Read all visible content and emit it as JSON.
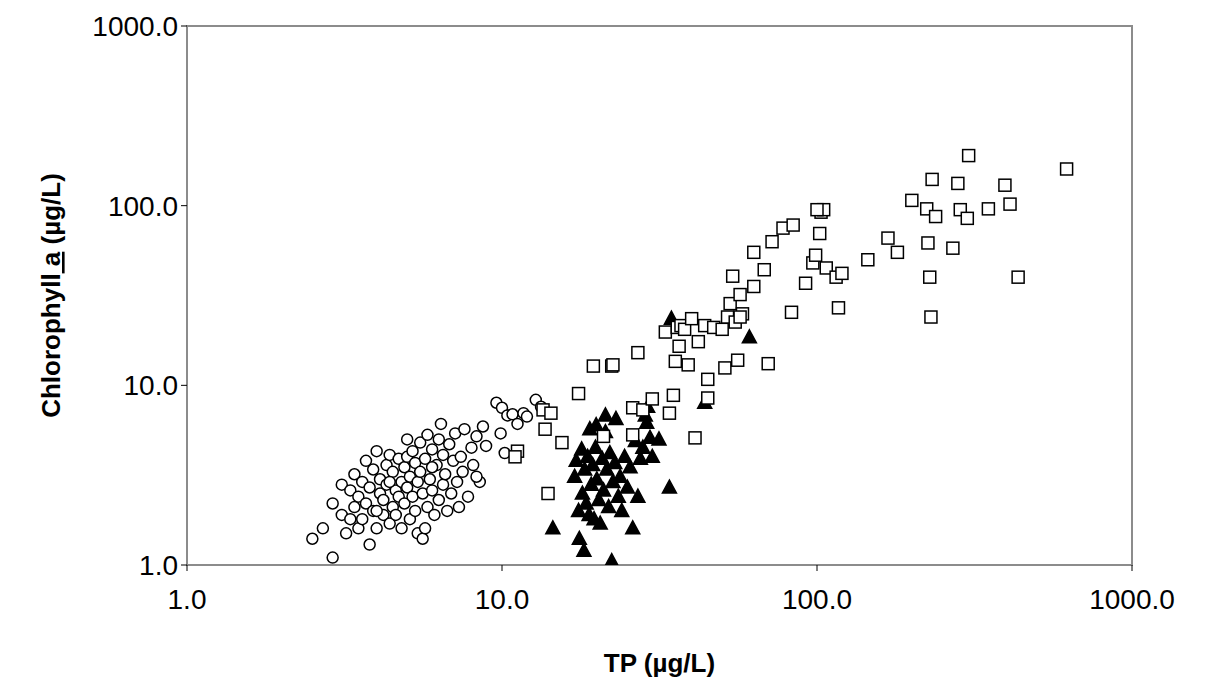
{
  "chart_data": {
    "type": "scatter",
    "x_label": "TP (µg/L)",
    "y_label": "Chlorophyll a (µg/L)",
    "log": true,
    "grid": false,
    "xlim": [
      1,
      1000
    ],
    "ylim": [
      1,
      1000
    ],
    "xticks": [
      {
        "value": 1,
        "label": "1.0"
      },
      {
        "value": 10,
        "label": "10.0"
      },
      {
        "value": 100,
        "label": "100.0"
      },
      {
        "value": 1000,
        "label": "1000.0"
      }
    ],
    "yticks": [
      {
        "value": 1,
        "label": "1.0"
      },
      {
        "value": 10,
        "label": "10.0"
      },
      {
        "value": 100,
        "label": "100.0"
      },
      {
        "value": 1000,
        "label": "1000.0"
      }
    ],
    "series": [
      {
        "marker": "circle",
        "color": "#000000",
        "x": [
          2.5,
          2.7,
          2.9,
          2.9,
          3.1,
          3.1,
          3.2,
          3.3,
          3.3,
          3.4,
          3.4,
          3.5,
          3.5,
          3.6,
          3.6,
          3.7,
          3.7,
          3.8,
          3.8,
          3.9,
          3.9,
          4.0,
          4.0,
          4.1,
          4.1,
          4.2,
          4.2,
          4.3,
          4.3,
          4.4,
          4.4,
          4.5,
          4.5,
          4.6,
          4.6,
          4.7,
          4.7,
          4.8,
          4.8,
          4.9,
          4.9,
          5.0,
          5.0,
          5.1,
          5.1,
          5.2,
          5.2,
          5.3,
          5.3,
          5.4,
          5.4,
          5.5,
          5.5,
          5.6,
          5.6,
          5.7,
          5.8,
          5.8,
          5.9,
          6.0,
          6.0,
          6.1,
          6.2,
          6.3,
          6.3,
          6.4,
          6.5,
          6.5,
          6.6,
          6.8,
          6.9,
          7.0,
          7.1,
          7.2,
          7.4,
          7.5,
          7.6,
          7.8,
          8.0,
          8.1,
          8.3,
          8.5,
          8.7,
          8.9,
          9.6,
          9.9,
          10.0,
          10.2,
          10.4,
          10.8,
          11.2,
          11.7,
          12.0,
          12.8,
          13.3,
          4.0,
          4.4,
          5.7,
          6.7,
          7.3,
          6.0,
          5.0,
          8.3
        ],
        "values": [
          1.4,
          1.6,
          1.1,
          2.2,
          1.9,
          2.8,
          1.5,
          2.6,
          1.8,
          2.1,
          3.2,
          1.6,
          2.4,
          1.8,
          2.9,
          2.2,
          3.8,
          1.3,
          2.7,
          2.0,
          3.4,
          1.6,
          4.3,
          2.5,
          3.0,
          1.9,
          2.3,
          3.6,
          2.8,
          1.7,
          4.1,
          2.1,
          3.3,
          2.6,
          1.9,
          3.9,
          2.4,
          2.9,
          1.6,
          3.5,
          2.2,
          4.0,
          2.7,
          1.8,
          3.1,
          2.4,
          4.3,
          3.7,
          2.0,
          2.9,
          1.5,
          4.8,
          3.3,
          2.5,
          1.4,
          3.9,
          2.1,
          5.3,
          3.0,
          4.4,
          2.6,
          1.9,
          3.6,
          5.0,
          2.3,
          6.1,
          4.1,
          2.8,
          3.2,
          4.7,
          2.5,
          3.8,
          5.4,
          2.9,
          4.0,
          3.3,
          5.7,
          2.4,
          4.5,
          3.6,
          5.2,
          2.9,
          5.9,
          4.6,
          8.0,
          5.4,
          7.5,
          4.2,
          6.8,
          6.9,
          6.1,
          7.0,
          6.7,
          8.3,
          7.6,
          2.0,
          2.9,
          1.6,
          2.0,
          2.1,
          3.5,
          5.0,
          3.1
        ]
      },
      {
        "marker": "triangle",
        "color": "#000000",
        "x": [
          14.5,
          17.0,
          17.2,
          17.5,
          17.6,
          17.9,
          18.0,
          18.2,
          18.3,
          18.5,
          18.7,
          18.9,
          19.0,
          19.2,
          19.4,
          19.6,
          19.8,
          20.0,
          20.3,
          20.5,
          20.8,
          21.0,
          21.3,
          21.5,
          21.8,
          22.0,
          22.3,
          22.5,
          22.8,
          23.0,
          23.4,
          23.7,
          24.0,
          24.5,
          25.0,
          25.5,
          26.0,
          26.5,
          27.0,
          27.5,
          28.0,
          28.5,
          29.0,
          29.5,
          30.0,
          31.5,
          34.0,
          34.5,
          44.0,
          61.0,
          21.3,
          19.9,
          28.8
        ],
        "values": [
          1.6,
          3.1,
          3.8,
          2.0,
          1.4,
          4.4,
          2.5,
          1.2,
          3.4,
          2.2,
          4.0,
          1.9,
          5.7,
          2.8,
          3.6,
          1.8,
          4.5,
          3.0,
          2.3,
          1.7,
          3.9,
          2.6,
          6.8,
          3.4,
          2.1,
          4.2,
          1.05,
          2.9,
          3.7,
          6.5,
          2.4,
          3.1,
          2.0,
          4.0,
          2.7,
          3.5,
          1.6,
          4.9,
          2.4,
          3.9,
          4.5,
          6.8,
          7.6,
          5.1,
          4.0,
          5.0,
          2.7,
          23.5,
          8.0,
          18.5,
          5.5,
          6.0,
          6.2
        ]
      },
      {
        "marker": "square",
        "color": "#000000",
        "x": [
          13.5,
          13.7,
          14.0,
          14.3,
          15.5,
          11.2,
          11.0,
          17.5,
          19.5,
          21.0,
          22.3,
          22.5,
          26.0,
          26.0,
          27.0,
          28.0,
          30.0,
          33.0,
          34.0,
          35.0,
          35.5,
          36.0,
          36.5,
          37.0,
          38.0,
          39.0,
          40.0,
          41.0,
          42.0,
          44.0,
          45.0,
          45.0,
          47.0,
          50.0,
          51.0,
          52.0,
          53.0,
          54.0,
          55.0,
          56.0,
          57.0,
          58.0,
          63.0,
          63.0,
          68.0,
          70.0,
          72.0,
          78.0,
          83.0,
          84.0,
          92.0,
          97.0,
          99.0,
          102.0,
          103.0,
          105.0,
          107.0,
          115.0,
          117.0,
          120.0,
          145.0,
          168.0,
          180.0,
          200.0,
          223.0,
          225.0,
          228.0,
          230.0,
          232.0,
          238.0,
          270.0,
          280.0,
          285.0,
          300.0,
          303.0,
          350.0,
          395.0,
          410.0,
          435.0,
          620.0,
          100.0,
          57.0
        ],
        "values": [
          7.3,
          5.7,
          2.5,
          7.0,
          4.8,
          4.3,
          4.0,
          9.0,
          12.8,
          5.2,
          12.8,
          13.0,
          5.3,
          7.5,
          15.2,
          7.3,
          8.4,
          19.8,
          7.0,
          8.8,
          13.6,
          21.0,
          16.5,
          21.5,
          20.5,
          13.0,
          23.5,
          5.1,
          17.5,
          21.5,
          10.8,
          8.5,
          21.0,
          20.5,
          12.5,
          24.0,
          28.5,
          40.5,
          22.5,
          13.8,
          32.0,
          25.0,
          35.5,
          55.0,
          44.0,
          13.2,
          63.0,
          75.0,
          25.5,
          78.0,
          37.0,
          48.0,
          53.0,
          70.0,
          92.0,
          95.0,
          45.0,
          40.0,
          27.0,
          42.0,
          50.0,
          66.0,
          55.0,
          107.0,
          96.0,
          62.0,
          40.0,
          24.0,
          140.0,
          87.0,
          58.0,
          133.0,
          95.0,
          85.0,
          190.0,
          96.0,
          130.0,
          102.0,
          40.0,
          160.0,
          95.0,
          24.0
        ]
      }
    ]
  }
}
